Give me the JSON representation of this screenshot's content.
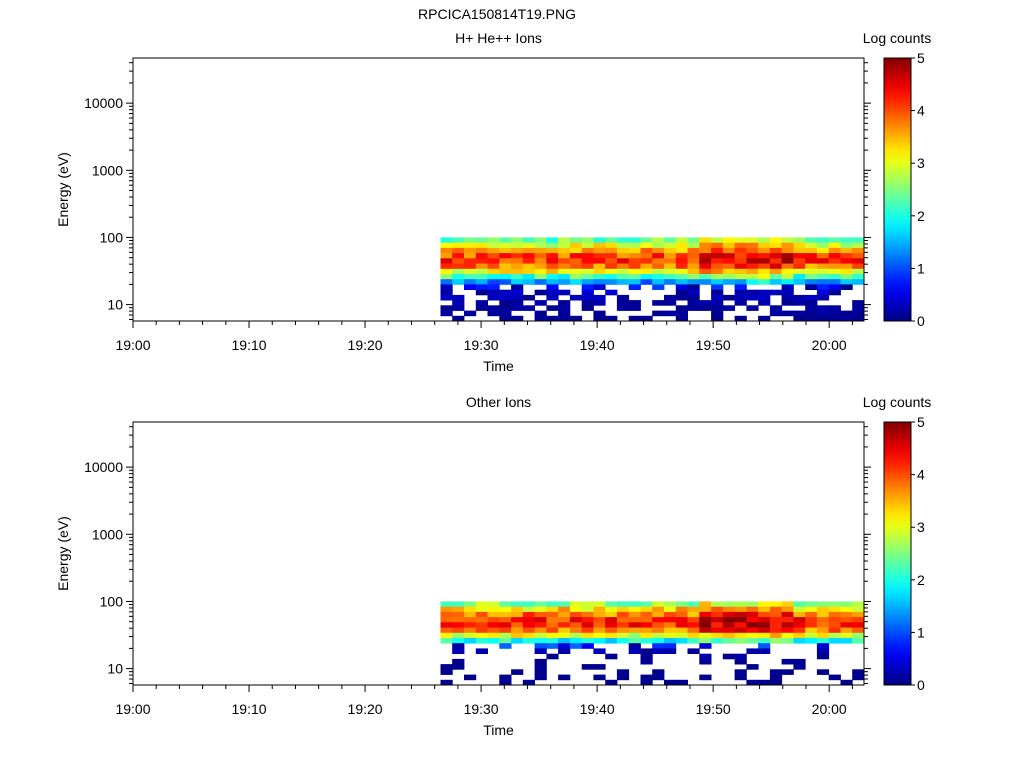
{
  "figure": {
    "title": "RPCICA150814T19.PNG"
  },
  "chart_data": [
    {
      "type": "heatmap",
      "title": "H+ He++ Ions",
      "xlabel": "Time",
      "ylabel": "Energy (eV)",
      "yscale": "log",
      "xlim": [
        "19:00",
        "20:03"
      ],
      "ylim": [
        5.7,
        47000
      ],
      "xticks": [
        "19:00",
        "19:10",
        "19:20",
        "19:30",
        "19:40",
        "19:50",
        "20:00"
      ],
      "yticks": [
        "10",
        "100",
        "1000",
        "10000"
      ],
      "data_time_range": [
        "19:26.5",
        "20:03"
      ],
      "data_energy_range": [
        5.7,
        100
      ],
      "colorbar": {
        "label": "Log counts",
        "range": [
          0,
          5
        ],
        "ticks": [
          "0",
          "1",
          "2",
          "3",
          "4",
          "5"
        ],
        "colormap": "jet"
      },
      "energy_rows_log_counts_typical": [
        {
          "energy": 90,
          "value": 2.4
        },
        {
          "energy": 75,
          "value": 3.0
        },
        {
          "energy": 62,
          "value": 3.6
        },
        {
          "energy": 52,
          "value": 4.0
        },
        {
          "energy": 43,
          "value": 4.1
        },
        {
          "energy": 36,
          "value": 3.8
        },
        {
          "energy": 30,
          "value": 3.1
        },
        {
          "energy": 25,
          "value": 2.2
        },
        {
          "energy": 21,
          "value": 1.3
        },
        {
          "energy": 17,
          "value": 0.6
        },
        {
          "energy": 14,
          "value": 0.3
        },
        {
          "energy": 12,
          "value": 0.2
        },
        {
          "energy": 10,
          "value": 0.15
        },
        {
          "energy": 8.5,
          "value": 0.1
        },
        {
          "energy": 7.2,
          "value": 0.1
        },
        {
          "energy": 6.1,
          "value": 0.05
        }
      ],
      "peak_intervals": [
        "19:48-19:56"
      ]
    },
    {
      "type": "heatmap",
      "title": "Other Ions",
      "xlabel": "Time",
      "ylabel": "Energy (eV)",
      "yscale": "log",
      "xlim": [
        "19:00",
        "20:03"
      ],
      "ylim": [
        5.7,
        47000
      ],
      "xticks": [
        "19:00",
        "19:10",
        "19:20",
        "19:30",
        "19:40",
        "19:50",
        "20:00"
      ],
      "yticks": [
        "10",
        "100",
        "1000",
        "10000"
      ],
      "data_time_range": [
        "19:26.5",
        "20:03"
      ],
      "data_energy_range": [
        5.7,
        100
      ],
      "colorbar": {
        "label": "Log counts",
        "range": [
          0,
          5
        ],
        "ticks": [
          "0",
          "1",
          "2",
          "3",
          "4",
          "5"
        ],
        "colormap": "jet"
      },
      "energy_rows_log_counts_typical": [
        {
          "energy": 90,
          "value": 2.6
        },
        {
          "energy": 75,
          "value": 3.3
        },
        {
          "energy": 62,
          "value": 3.8
        },
        {
          "energy": 52,
          "value": 4.2
        },
        {
          "energy": 43,
          "value": 4.2
        },
        {
          "energy": 36,
          "value": 3.8
        },
        {
          "energy": 30,
          "value": 3.0
        },
        {
          "energy": 25,
          "value": 2.0
        },
        {
          "energy": 21,
          "value": 0.8
        },
        {
          "energy": 17,
          "value": 0.2
        },
        {
          "energy": 14,
          "value": 0.1
        },
        {
          "energy": 12,
          "value": 0.05
        },
        {
          "energy": 10,
          "value": 0.05
        },
        {
          "energy": 8.5,
          "value": 0.03
        },
        {
          "energy": 7.2,
          "value": 0.03
        },
        {
          "energy": 6.1,
          "value": 0.02
        }
      ],
      "peak_intervals": [
        "19:48-19:56"
      ]
    }
  ]
}
